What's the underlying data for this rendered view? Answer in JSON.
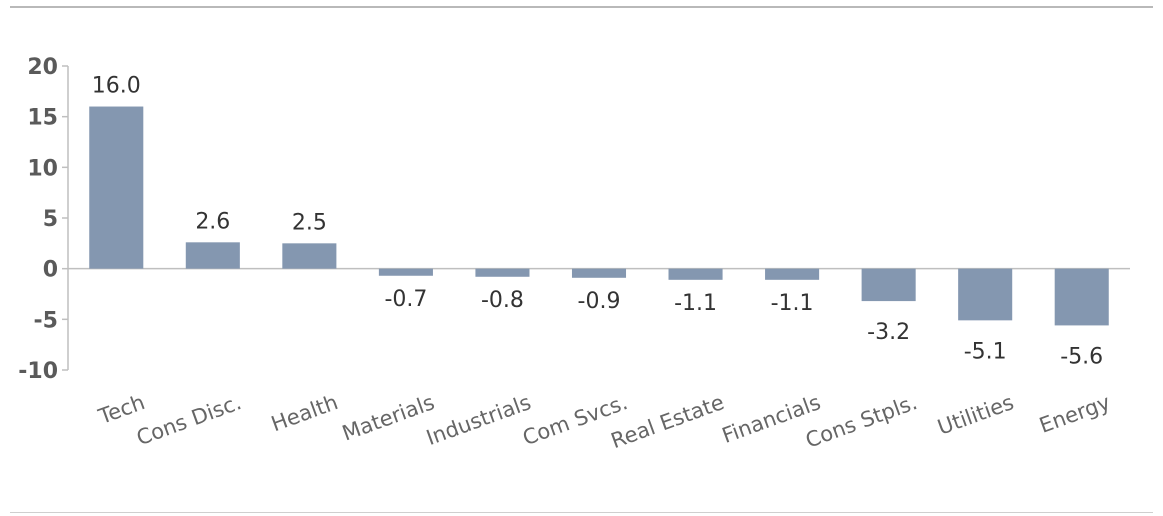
{
  "chart_data": {
    "type": "bar",
    "title": "",
    "xlabel": "",
    "ylabel": "",
    "ylim": [
      -10,
      20
    ],
    "yticks": [
      20,
      15,
      10,
      5,
      0,
      -5,
      -10
    ],
    "grid": false,
    "categories": [
      "Tech",
      "Cons Disc.",
      "Health",
      "Materials",
      "Industrials",
      "Com Svcs.",
      "Real Estate",
      "Financials",
      "Cons Stpls.",
      "Utilities",
      "Energy"
    ],
    "values": [
      16.0,
      2.6,
      2.5,
      -0.7,
      -0.8,
      -0.9,
      -1.1,
      -1.1,
      -3.2,
      -5.1,
      -5.6
    ],
    "data_labels": [
      "16.0",
      "2.6",
      "2.5",
      "-0.7",
      "-0.8",
      "-0.9",
      "-1.1",
      "-1.1",
      "-3.2",
      "-5.1",
      "-5.6"
    ],
    "colors": {
      "bar": "#8497b0",
      "axis": "#bfbfbf"
    }
  }
}
